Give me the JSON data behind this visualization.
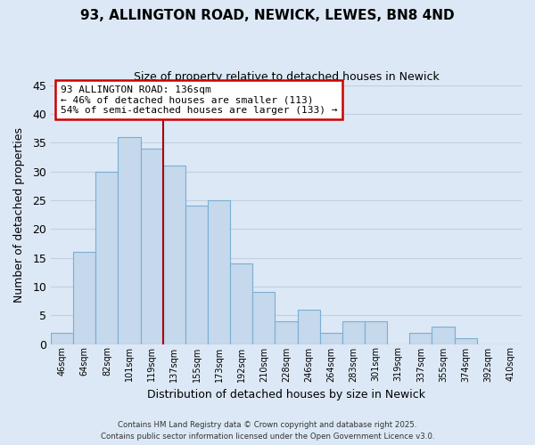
{
  "title": "93, ALLINGTON ROAD, NEWICK, LEWES, BN8 4ND",
  "subtitle": "Size of property relative to detached houses in Newick",
  "xlabel": "Distribution of detached houses by size in Newick",
  "ylabel": "Number of detached properties",
  "bin_labels": [
    "46sqm",
    "64sqm",
    "82sqm",
    "101sqm",
    "119sqm",
    "137sqm",
    "155sqm",
    "173sqm",
    "192sqm",
    "210sqm",
    "228sqm",
    "246sqm",
    "264sqm",
    "283sqm",
    "301sqm",
    "319sqm",
    "337sqm",
    "355sqm",
    "374sqm",
    "392sqm",
    "410sqm"
  ],
  "bar_heights": [
    2,
    16,
    30,
    36,
    34,
    31,
    24,
    25,
    14,
    9,
    4,
    6,
    2,
    4,
    4,
    0,
    2,
    3,
    1,
    0,
    0
  ],
  "bar_color": "#c5d8ec",
  "bar_edge_color": "#7aafd4",
  "highlight_line_index": 5,
  "highlight_line_color": "#aa0000",
  "annotation_text": "93 ALLINGTON ROAD: 136sqm\n← 46% of detached houses are smaller (113)\n54% of semi-detached houses are larger (133) →",
  "annotation_box_color": "#ffffff",
  "annotation_border_color": "#cc0000",
  "ylim": [
    0,
    45
  ],
  "yticks": [
    0,
    5,
    10,
    15,
    20,
    25,
    30,
    35,
    40,
    45
  ],
  "background_color": "#dce8f5",
  "grid_color": "#c0cfe0",
  "footer_line1": "Contains HM Land Registry data © Crown copyright and database right 2025.",
  "footer_line2": "Contains public sector information licensed under the Open Government Licence v3.0."
}
